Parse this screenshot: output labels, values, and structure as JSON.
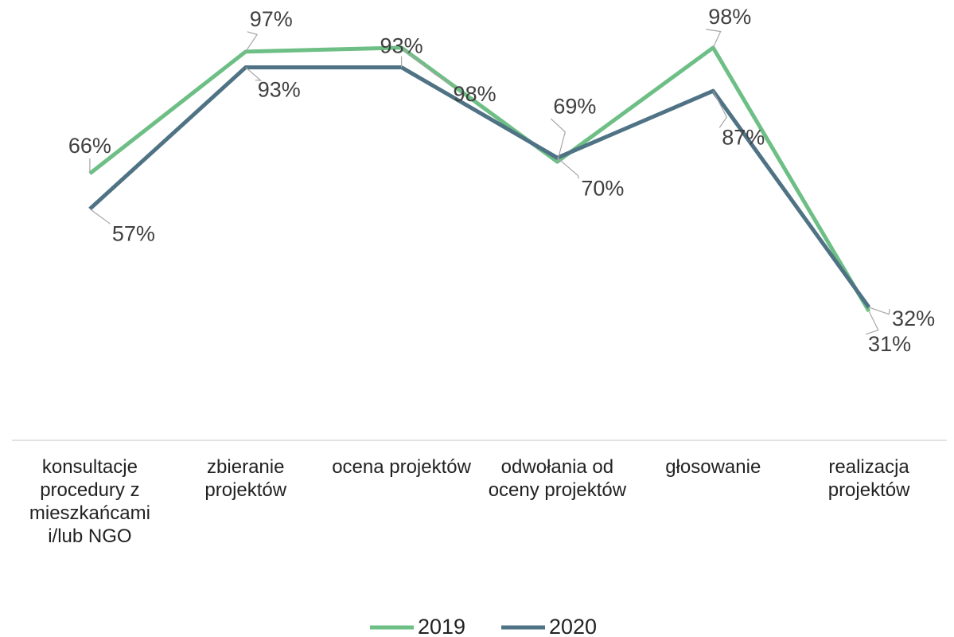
{
  "chart_data": {
    "type": "line",
    "categories": [
      "konsultacje procedury z mieszkańcami i/lub NGO",
      "zbieranie projektów",
      "ocena projektów",
      "odwołania od oceny projektów",
      "głosowanie",
      "realizacja projektów"
    ],
    "series": [
      {
        "name": "2019",
        "color": "#6dbf85",
        "values": [
          66,
          97,
          98,
          69,
          98,
          31
        ],
        "value_labels": [
          "66%",
          "97%",
          "98%",
          "69%",
          "98%",
          "31%"
        ]
      },
      {
        "name": "2020",
        "color": "#4f7384",
        "values": [
          57,
          93,
          93,
          70,
          87,
          32
        ],
        "value_labels": [
          "57%",
          "93%",
          "93%",
          "70%",
          "87%",
          "32%"
        ]
      }
    ],
    "ylim": [
      0,
      100
    ],
    "legend": "bottom"
  }
}
